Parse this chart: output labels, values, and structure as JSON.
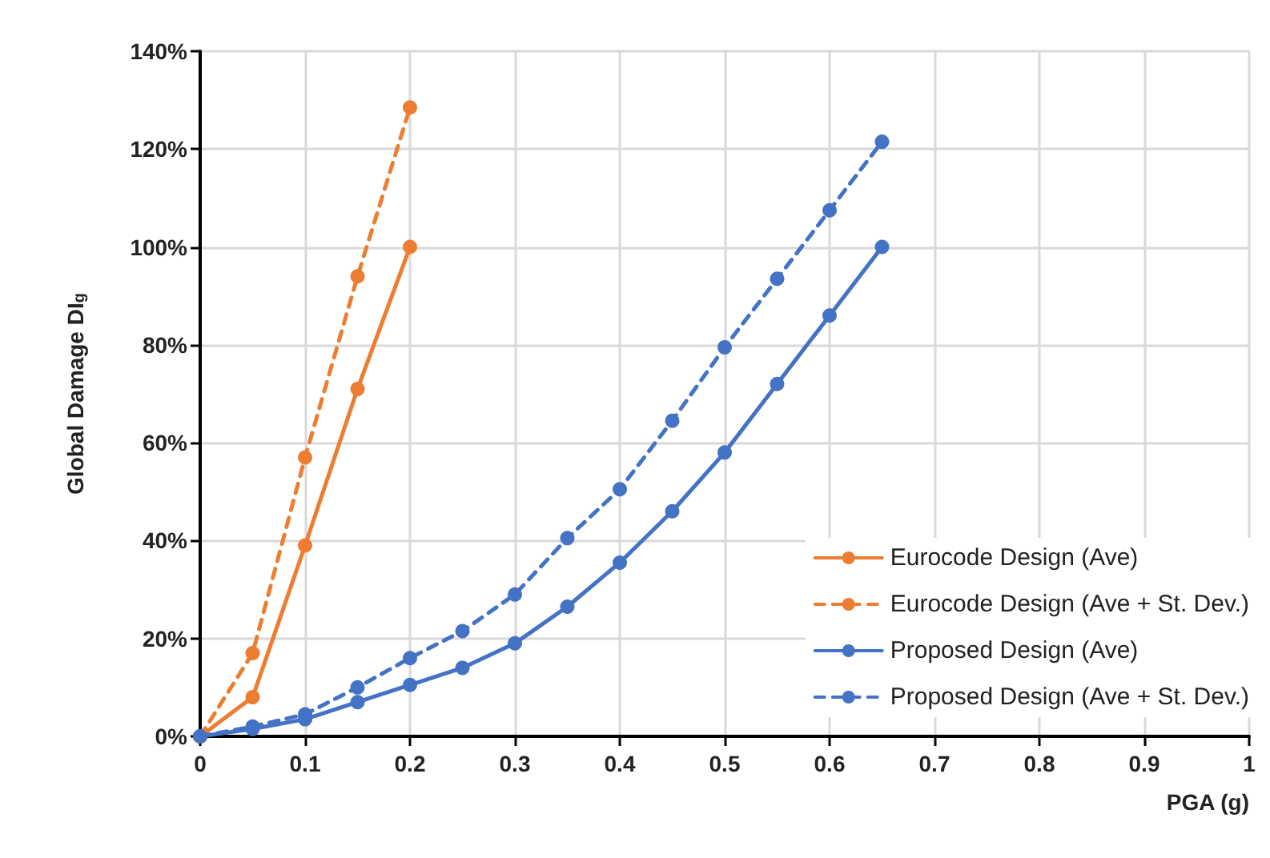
{
  "chart_data": {
    "type": "line",
    "xlabel": "PGA (g)",
    "ylabel": "Global Damage DI$_{g}$",
    "xlim": [
      0,
      1
    ],
    "xticks": [
      0,
      0.1,
      0.2,
      0.3,
      0.4,
      0.5,
      0.6,
      0.7,
      0.8,
      0.9,
      1
    ],
    "ylim": [
      0,
      140
    ],
    "yticks": [
      {
        "value": 0,
        "label": "0%"
      },
      {
        "value": 20,
        "label": "20%"
      },
      {
        "value": 40,
        "label": "40%"
      },
      {
        "value": 60,
        "label": "60%"
      },
      {
        "value": 80,
        "label": "80%"
      },
      {
        "value": 100,
        "label": "100%"
      },
      {
        "value": 120,
        "label": "120%"
      },
      {
        "value": 140,
        "label": "140%"
      }
    ],
    "grid": true,
    "legend": "bottom right",
    "marker": "circle",
    "series": [
      {
        "name": "Eurocode Design (Ave)",
        "color": "#ed7d31",
        "line_style": "solid",
        "x": [
          0,
          0.05,
          0.1,
          0.15,
          0.2
        ],
        "values": [
          0,
          8,
          39,
          71,
          100
        ]
      },
      {
        "name": "Eurocode Design (Ave + St. Dev.)",
        "color": "#ed7d31",
        "line_style": "dashed",
        "x": [
          0,
          0.05,
          0.1,
          0.15,
          0.2
        ],
        "values": [
          0,
          17,
          57,
          94,
          128.5
        ]
      },
      {
        "name": "Proposed Design (Ave)",
        "color": "#4472c4",
        "line_style": "solid",
        "x": [
          0,
          0.05,
          0.1,
          0.15,
          0.2,
          0.25,
          0.3,
          0.35,
          0.4,
          0.45,
          0.5,
          0.55,
          0.6,
          0.65
        ],
        "values": [
          0,
          1.5,
          3.5,
          7,
          10.5,
          14,
          19,
          26.5,
          35.5,
          46,
          58,
          72,
          86,
          100
        ]
      },
      {
        "name": "Proposed Design (Ave + St. Dev.)",
        "color": "#4472c4",
        "line_style": "dashed",
        "x": [
          0,
          0.05,
          0.1,
          0.15,
          0.2,
          0.25,
          0.3,
          0.35,
          0.4,
          0.45,
          0.5,
          0.55,
          0.6,
          0.65
        ],
        "values": [
          0,
          2,
          4.5,
          10,
          16,
          21.5,
          29,
          40.5,
          50.5,
          64.5,
          79.5,
          93.5,
          107.5,
          121.5
        ]
      }
    ]
  }
}
